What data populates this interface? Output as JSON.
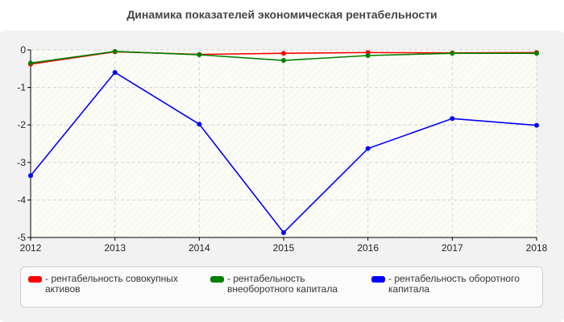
{
  "chart_data": {
    "type": "line",
    "title": "Динамика показателей экономическая рентабельности",
    "x": [
      "2012",
      "2013",
      "2014",
      "2015",
      "2016",
      "2017",
      "2018"
    ],
    "ylim": [
      -5,
      0
    ],
    "yticks": [
      "0",
      "-1",
      "-2",
      "-3",
      "-4",
      "-5"
    ],
    "grid": true,
    "legend_position": "bottom",
    "series": [
      {
        "name": "рентабельность совокупных активов",
        "color": "#ff0000",
        "values": [
          -0.38,
          -0.05,
          -0.12,
          -0.09,
          -0.07,
          -0.08,
          -0.07
        ]
      },
      {
        "name": "рентабельность внеоборотного капитала",
        "color": "#008000",
        "values": [
          -0.35,
          -0.04,
          -0.13,
          -0.28,
          -0.15,
          -0.09,
          -0.09
        ]
      },
      {
        "name": "рентабельность оборотного капитала",
        "color": "#0000ff",
        "values": [
          -3.35,
          -0.6,
          -1.98,
          -4.87,
          -2.63,
          -1.83,
          -2.01
        ]
      }
    ]
  },
  "legend": {
    "items": [
      {
        "label": "- рентабельность совокупных активов",
        "color": "#ff0000"
      },
      {
        "label": "- рентабельность внеоборотного капитала",
        "color": "#008000"
      },
      {
        "label": "- рентабельность оборотного капитала",
        "color": "#0000ff"
      }
    ]
  }
}
